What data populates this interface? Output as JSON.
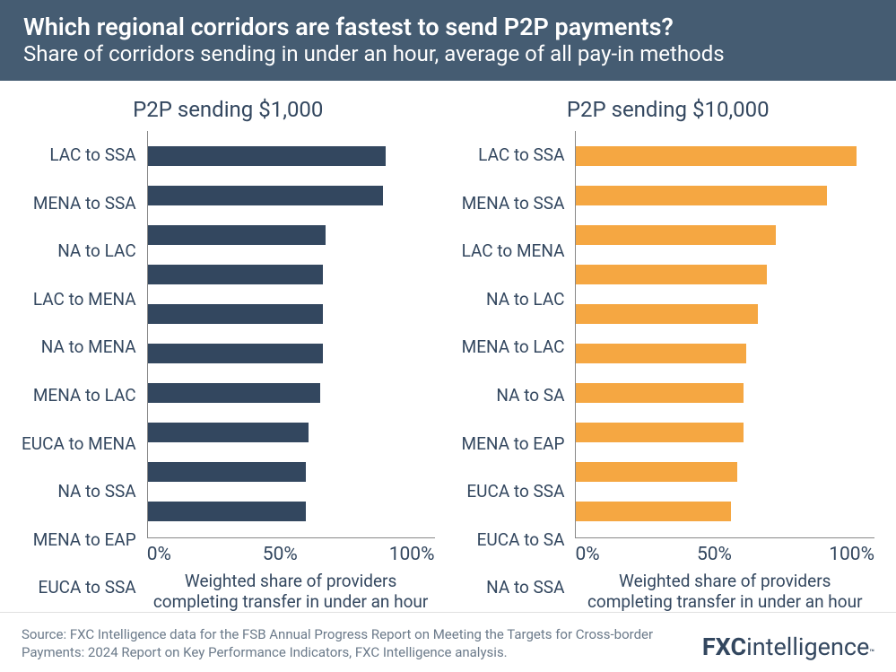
{
  "colors": {
    "header_bg": "#455c72",
    "header_text": "#ffffff",
    "text": "#33475f",
    "bar_left": "#33475f",
    "bar_right": "#f5a742",
    "axis": "#888888",
    "footer_text": "#6b7a8a",
    "background": "#ffffff"
  },
  "typography": {
    "title_size": 27,
    "subtitle_size": 24,
    "chart_title_size": 24,
    "ylabel_size": 19,
    "xtick_size": 21,
    "xlabel_size": 19,
    "footer_size": 15,
    "logo_size": 27
  },
  "header": {
    "title": "Which regional corridors are fastest to send P2P payments?",
    "subtitle": "Share of corridors sending in under an hour, average of all pay-in methods"
  },
  "xaxis": {
    "min": 0,
    "max": 100,
    "ticks": [
      0,
      50,
      100
    ],
    "tick_labels": [
      "0%",
      "50%",
      "100%"
    ],
    "label": "Weighted share of providers completing transfer in under an hour"
  },
  "charts": [
    {
      "title": "P2P sending $1,000",
      "bar_color_key": "bar_left",
      "categories": [
        "LAC to SSA",
        "MENA to SSA",
        "NA to LAC",
        "LAC to MENA",
        "NA to MENA",
        "MENA to LAC",
        "EUCA to MENA",
        "NA to SSA",
        "MENA to EAP",
        "EUCA to SSA"
      ],
      "values": [
        83,
        82,
        62,
        61,
        61,
        61,
        60,
        56,
        55,
        55
      ]
    },
    {
      "title": "P2P sending $10,000",
      "bar_color_key": "bar_right",
      "categories": [
        "LAC to SSA",
        "MENA to SSA",
        "LAC to MENA",
        "NA to LAC",
        "MENA to LAC",
        "NA to SA",
        "MENA to EAP",
        "EUCA to SSA",
        "EUCA to SA",
        "NA to SSA"
      ],
      "values": [
        94,
        84,
        67,
        64,
        61,
        57,
        56,
        56,
        54,
        52
      ]
    }
  ],
  "footer": {
    "source": "Source: FXC Intelligence data for the FSB Annual Progress Report on Meeting the Targets for Cross-border Payments: 2024 Report on Key Performance Indicators, FXC Intelligence analysis.",
    "logo_bold": "FXC",
    "logo_rest": "intelligence",
    "logo_tm": "™"
  }
}
